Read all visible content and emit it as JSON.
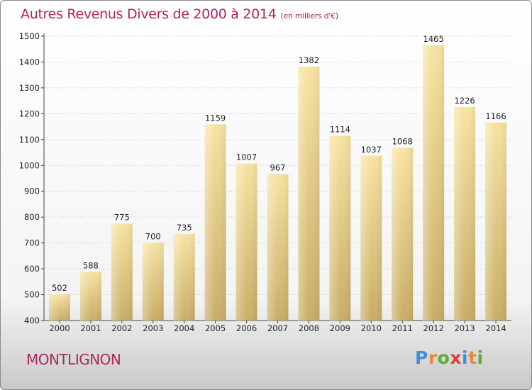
{
  "title": "Autres Revenus Divers de 2000 à 2014",
  "title_unit": "(en milliers d'€)",
  "location": "MONTLIGNON",
  "logo": {
    "letters": [
      "P",
      "r",
      "o",
      "x",
      "i",
      "t",
      "i"
    ],
    "colors": [
      "#3c8fd8",
      "#e8893a",
      "#5aaa3c",
      "#e33b3b",
      "#3c8fd8",
      "#e8893a",
      "#5aaa3c"
    ]
  },
  "colors": {
    "title": "#b2235c",
    "bar_light": "#f7e3a1",
    "bar_dark": "#c8ad67",
    "grid": "#cccccc"
  },
  "chart_data": {
    "type": "bar",
    "title": "Autres Revenus Divers de 2000 à 2014",
    "subtitle": "(en milliers d'€)",
    "categories": [
      "2000",
      "2001",
      "2002",
      "2003",
      "2004",
      "2005",
      "2006",
      "2007",
      "2008",
      "2009",
      "2010",
      "2011",
      "2012",
      "2013",
      "2014"
    ],
    "values": [
      502,
      588,
      775,
      700,
      735,
      1159,
      1007,
      967,
      1382,
      1114,
      1037,
      1068,
      1465,
      1226,
      1166
    ],
    "ylim": [
      400,
      1500
    ],
    "yticks": [
      400,
      500,
      600,
      700,
      800,
      900,
      1000,
      1100,
      1200,
      1300,
      1400,
      1500
    ],
    "grid": true,
    "xlabel": "",
    "ylabel": ""
  }
}
